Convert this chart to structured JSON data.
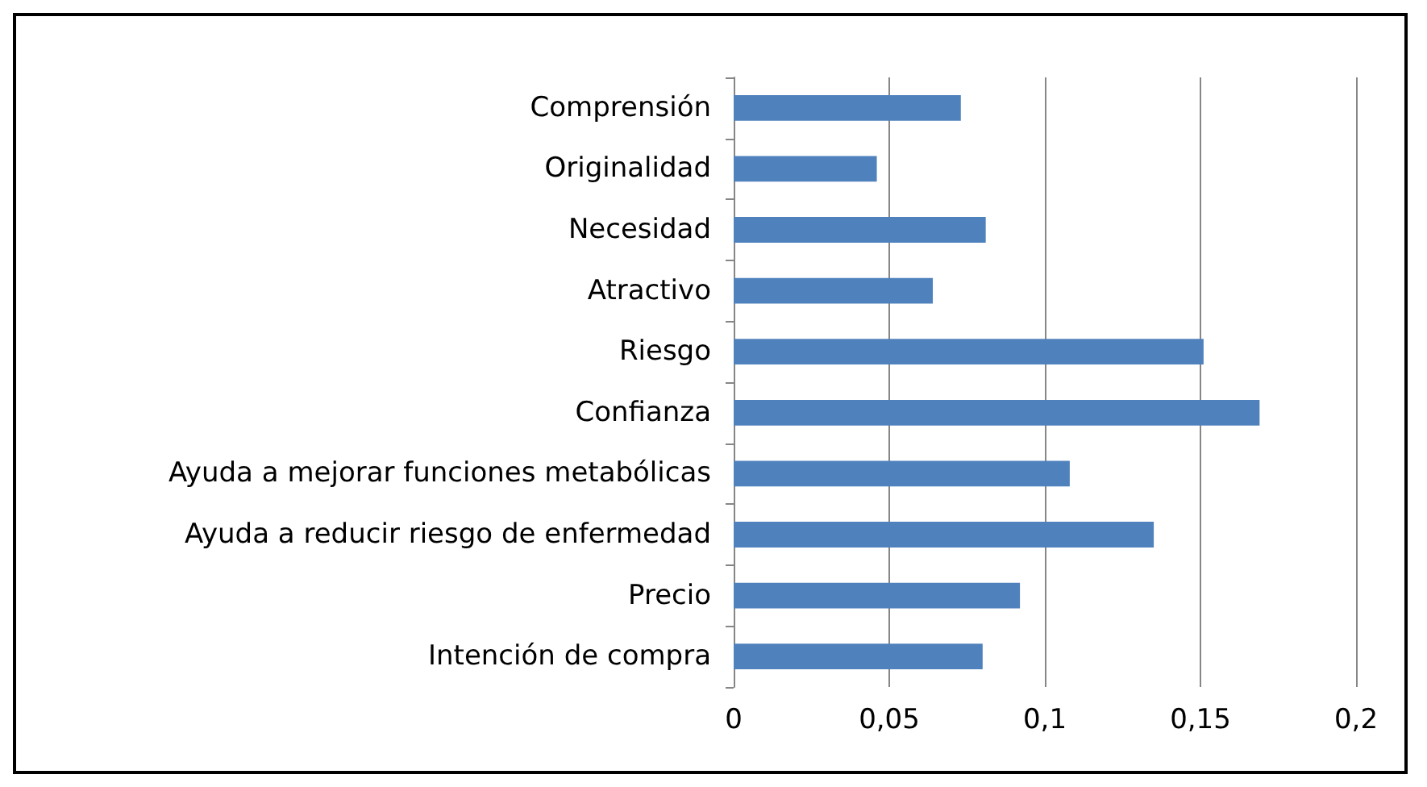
{
  "chart_data": {
    "type": "bar",
    "orientation": "horizontal",
    "categories": [
      "Comprensión",
      "Originalidad",
      "Necesidad",
      "Atractivo",
      "Riesgo",
      "Confianza",
      "Ayuda a mejorar funciones metabólicas",
      "Ayuda a reducir riesgo de enfermedad",
      "Precio",
      "Intención de compra"
    ],
    "values": [
      0.073,
      0.046,
      0.081,
      0.064,
      0.151,
      0.169,
      0.108,
      0.135,
      0.092,
      0.08
    ],
    "color": "#4f81bd",
    "xlim": [
      0,
      0.2
    ],
    "xticks": [
      0,
      {
        "value": 0.05,
        "label": "0,05"
      },
      {
        "value": 0.1,
        "label": "0,1"
      },
      {
        "value": 0.15,
        "label": "0,15"
      },
      {
        "value": 0.2,
        "label": "0,2"
      }
    ],
    "grid": "x"
  }
}
